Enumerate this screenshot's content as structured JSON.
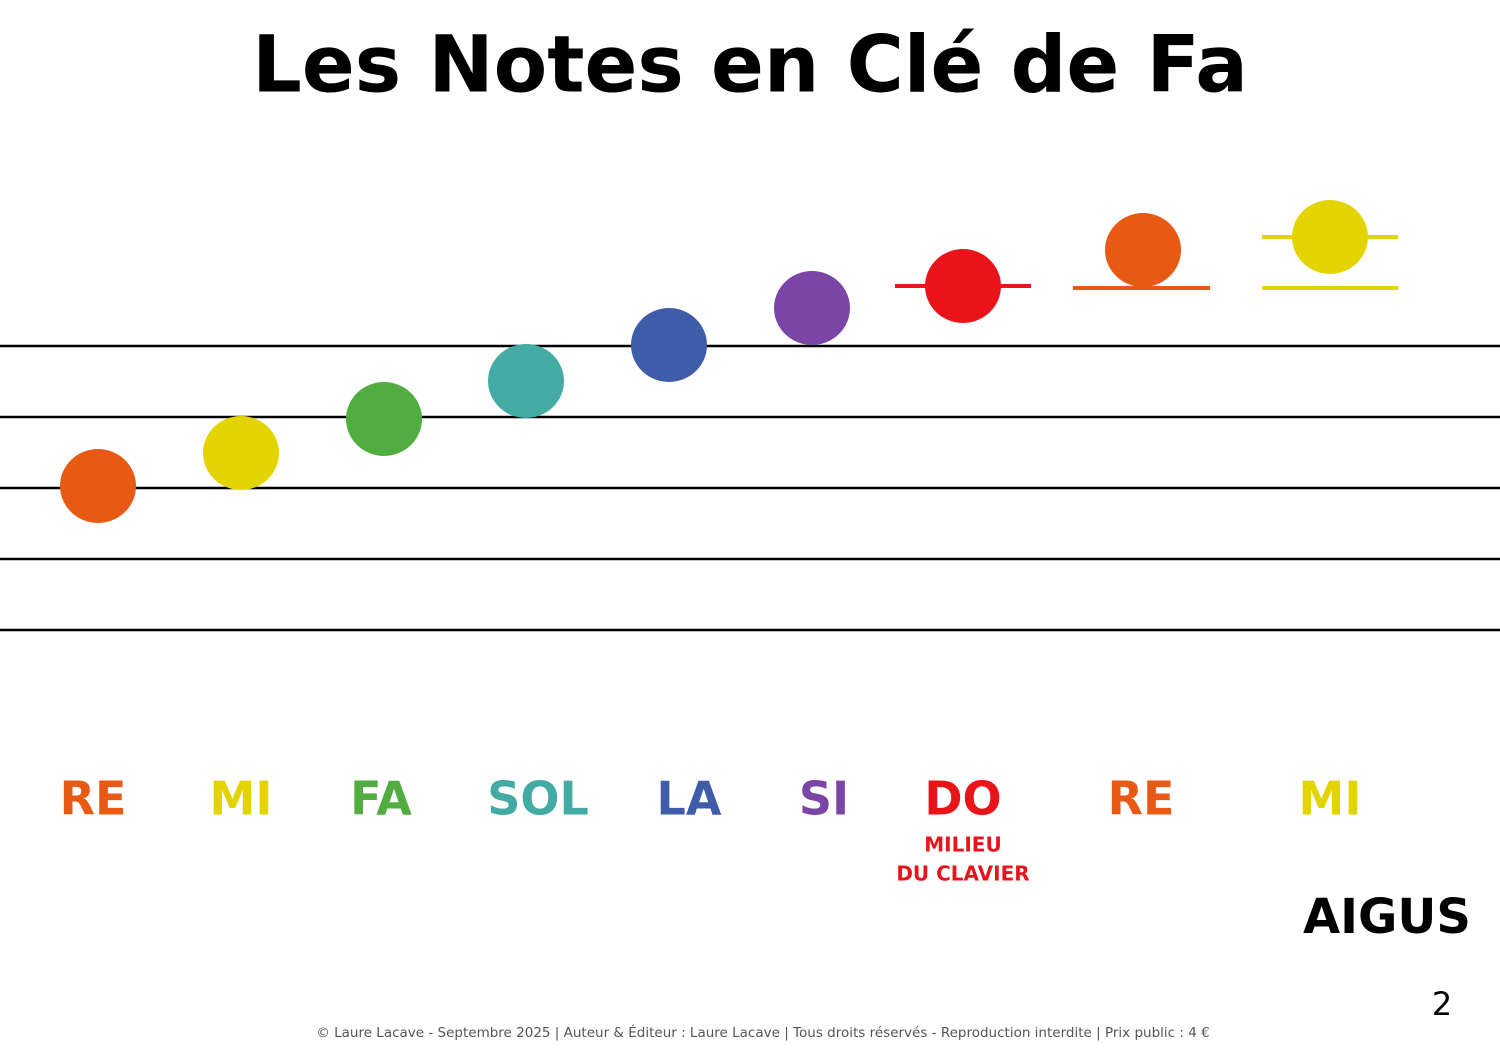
{
  "title": "Les Notes en Clé de Fa",
  "notes": [
    {
      "label": "RE",
      "color": "#e85a14"
    },
    {
      "label": "MI",
      "color": "#e3d400"
    },
    {
      "label": "FA",
      "color": "#52ad41"
    },
    {
      "label": "SOL",
      "color": "#43aba3"
    },
    {
      "label": "LA",
      "color": "#3f5ca8"
    },
    {
      "label": "SI",
      "color": "#7b45a6"
    },
    {
      "label": "DO",
      "color": "#e8141a"
    },
    {
      "label": "RE",
      "color": "#e85a14"
    },
    {
      "label": "MI",
      "color": "#e3d400"
    }
  ],
  "middle_annotation": [
    "MILIEU",
    "DU CLAVIER"
  ],
  "register": "AIGUS",
  "page_number": "2",
  "footer": "© Laure Lacave - Septembre 2025 | Auteur & Éditeur : Laure Lacave | Tous droits réservés - Reproduction interdite | Prix public : 4 €"
}
